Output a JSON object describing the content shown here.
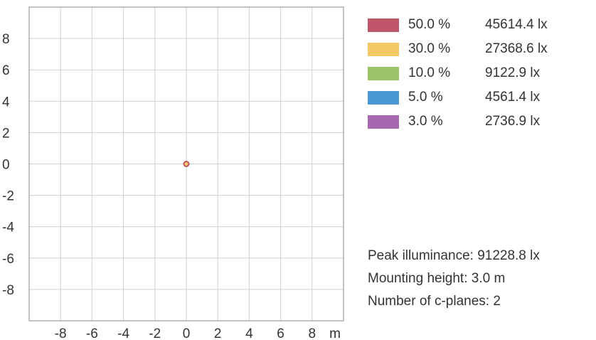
{
  "chart_data": {
    "type": "scatter",
    "x_ticks": [
      -8,
      -6,
      -4,
      -2,
      0,
      2,
      4,
      6,
      8
    ],
    "y_ticks": [
      8,
      6,
      4,
      2,
      0,
      -2,
      -4,
      -6,
      -8
    ],
    "x_unit": "m",
    "xlim": [
      -10,
      10
    ],
    "ylim": [
      -10,
      10
    ],
    "grid": true,
    "points": [
      {
        "x": 0,
        "y": 0
      }
    ],
    "point_color": "#c0566a",
    "legend": [
      {
        "percent": "50.0 %",
        "value": "45614.4 lx",
        "color": "#c0566a"
      },
      {
        "percent": "30.0 %",
        "value": "27368.6 lx",
        "color": "#f2c765"
      },
      {
        "percent": "10.0 %",
        "value": "9122.9 lx",
        "color": "#9ec46a"
      },
      {
        "percent": "5.0 %",
        "value": "4561.4 lx",
        "color": "#4a98d2"
      },
      {
        "percent": "3.0 %",
        "value": "2736.9 lx",
        "color": "#a868b0"
      }
    ]
  },
  "info": {
    "peak": "Peak illuminance: 91228.8 lx",
    "height": "Mounting height: 3.0 m",
    "planes": "Number of c-planes: 2"
  }
}
